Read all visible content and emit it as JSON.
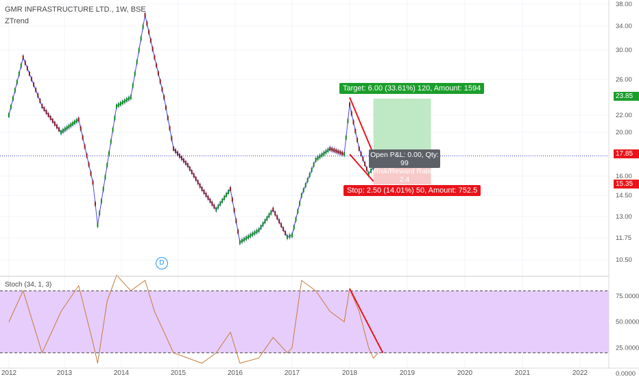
{
  "legend": {
    "symbol": "GMR INFRASTRUCTURE LTD., 1W, BSE",
    "indicator": "ZTrend",
    "stoch": "Stoch (34, 1, 3)"
  },
  "price_axis_labels": [
    "38.00",
    "34.00",
    "30.00",
    "26.00",
    "22.00",
    "20.00",
    "16.00",
    "14.50",
    "13.00",
    "11.75",
    "10.50"
  ],
  "price_tags": {
    "target": "23.85",
    "current": "17.85",
    "stop": "15.35"
  },
  "stoch_axis_labels": [
    "75.0000",
    "50.0000",
    "25.0000",
    "0.0000"
  ],
  "time_labels": [
    "2012",
    "2013",
    "2014",
    "2015",
    "2016",
    "2017",
    "2018",
    "2019",
    "2020",
    "2021",
    "2022"
  ],
  "position": {
    "target_label": "Target: 6.00 (33.61%) 120, Amount: 1594",
    "stop_label": "Stop: 2.50 (14.01%) 50, Amount: 752.5",
    "open_pl": "Open P&L: 0.00, Qty: 99",
    "risk_reward": "Risk/Reward Ratio: 2.4"
  },
  "dividend_marker": "D",
  "colors": {
    "bull_candle": "#0d8a1f",
    "bear_candle": "#8b1a1a",
    "trend_line": "#4a4ae0",
    "current_price_line": "#2a2ae6",
    "target_zone": "#bfe8c4",
    "stop_zone": "#f7c9c9",
    "stoch_band": "#e6cdfb",
    "stoch_line": "#c77a3c",
    "red_trendline": "#e8141a",
    "target_tag": "#1b9e2b",
    "current_tag": "#e8141a",
    "stop_tag": "#e8141a"
  },
  "chart_data": {
    "type": "line",
    "series": [
      {
        "x": [
          "2012-01",
          "2012-04",
          "2012-08",
          "2012-12",
          "2013-04",
          "2013-07",
          "2013-08",
          "2013-10",
          "2013-12",
          "2014-03",
          "2014-06",
          "2014-08",
          "2014-10",
          "2014-12",
          "2015-03",
          "2015-06",
          "2015-09",
          "2015-12",
          "2016-02",
          "2016-06",
          "2016-09",
          "2016-12",
          "2017-01",
          "2017-03",
          "2017-06",
          "2017-09",
          "2017-12",
          "2018-01",
          "2018-03",
          "2018-05",
          "2018-06",
          "2018-07"
        ],
        "y": [
          22,
          29,
          23,
          20,
          21.5,
          15.5,
          12.5,
          17,
          23,
          24,
          36,
          29,
          24,
          18.5,
          17,
          15,
          13.5,
          15,
          11.5,
          12.2,
          13.5,
          11.8,
          11.9,
          14.5,
          17.5,
          18.5,
          18,
          23.2,
          18.5,
          16.2,
          16.8,
          17.85
        ]
      },
      {
        "x": [
          "2012-01",
          "2012-04",
          "2012-08",
          "2012-12",
          "2013-04",
          "2013-07",
          "2013-08",
          "2013-10",
          "2013-12",
          "2014-03",
          "2014-06",
          "2014-08",
          "2014-10",
          "2014-12",
          "2015-03",
          "2015-06",
          "2015-09",
          "2015-12",
          "2016-02",
          "2016-06",
          "2016-09",
          "2016-12",
          "2017-01",
          "2017-03",
          "2017-06",
          "2017-09",
          "2017-12",
          "2018-01",
          "2018-03",
          "2018-05",
          "2018-06",
          "2018-07"
        ],
        "y": [
          50,
          80,
          20,
          60,
          85,
          30,
          10,
          70,
          95,
          80,
          90,
          60,
          40,
          20,
          15,
          10,
          20,
          40,
          10,
          15,
          35,
          20,
          25,
          90,
          80,
          60,
          50,
          82,
          60,
          25,
          15,
          20
        ]
      }
    ],
    "price_ylim": [
      10.2,
      38
    ],
    "stoch_ylim": [
      0,
      80
    ],
    "stoch_bands": [
      20,
      80
    ]
  }
}
